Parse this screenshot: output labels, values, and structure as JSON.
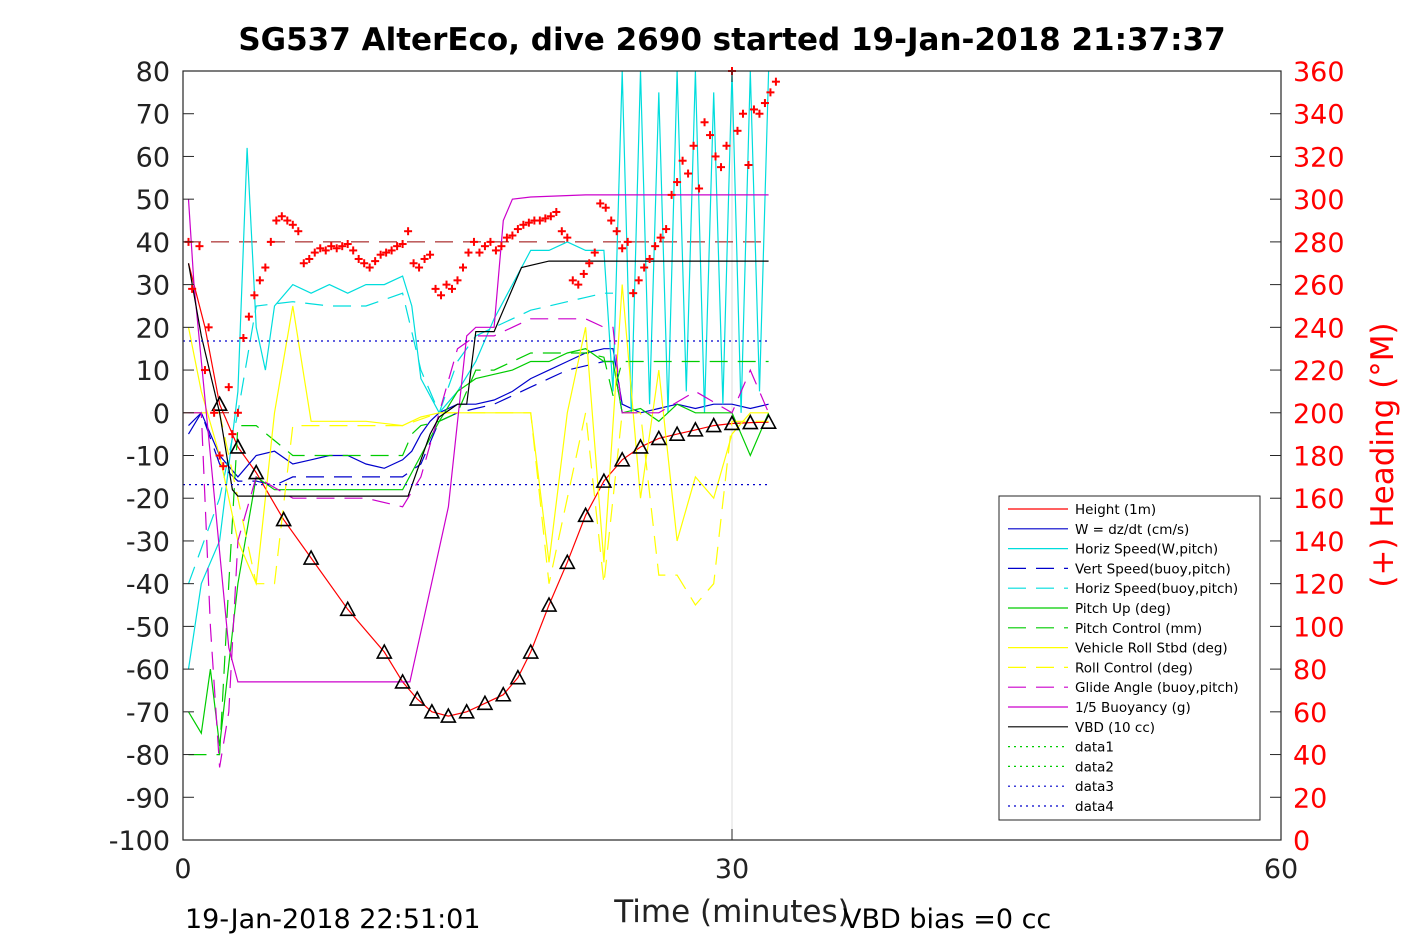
{
  "chart_data": {
    "type": "line",
    "title": "SG537 AlterEco, dive 2690 started 19-Jan-2018 21:37:37",
    "xlabel": "Time (minutes)",
    "ylabel_right": "(+) Heading (°M)",
    "xlim": [
      0,
      60
    ],
    "ylim_left": [
      -100,
      80
    ],
    "ylim_right": [
      0,
      360
    ],
    "x_ticks": [
      "0",
      "30",
      "60"
    ],
    "y_ticks_left": [
      "80",
      "70",
      "60",
      "50",
      "40",
      "30",
      "20",
      "10",
      "0",
      "-10",
      "-20",
      "-30",
      "-40",
      "-50",
      "-60",
      "-70",
      "-80",
      "-90",
      "-100"
    ],
    "y_ticks_right": [
      "360",
      "340",
      "320",
      "300",
      "280",
      "260",
      "240",
      "220",
      "200",
      "180",
      "160",
      "140",
      "120",
      "100",
      "80",
      "60",
      "40",
      "20",
      "0"
    ],
    "grid": "x-only",
    "legend_position": "bottom-right",
    "footer_left": "19-Jan-2018 22:51:01",
    "footer_right": "VBD bias =0 cc",
    "series": [
      {
        "name": "Height (1m)",
        "color": "#ff0000",
        "style": "solid",
        "x": [
          0.3,
          1.2,
          2.0,
          3.0,
          4.0,
          5.5,
          7.0,
          9.0,
          11.0,
          12.0,
          12.8,
          13.6,
          14.5,
          15.5,
          16.5,
          17.5,
          18.3,
          19.0,
          20.0,
          21.0,
          22.0,
          23.0,
          24.0,
          25.0,
          26.0,
          27.0,
          28.0,
          29.0,
          30.0,
          31.0,
          32.0
        ],
        "y": [
          35,
          20,
          2,
          -8,
          -14,
          -25,
          -34,
          -46,
          -56,
          -63,
          -67,
          -70,
          -71,
          -70,
          -68,
          -66,
          -62,
          -56,
          -45,
          -35,
          -24,
          -16,
          -11,
          -8,
          -6,
          -5,
          -4,
          -3,
          -2.5,
          -2.3,
          -2.2
        ]
      },
      {
        "name": "W = dz/dt (cm/s)",
        "color": "#0000cc",
        "style": "solid",
        "x": [
          0.3,
          1.0,
          2.0,
          3.0,
          4.0,
          5.0,
          6.0,
          7.0,
          8.0,
          9.0,
          10.0,
          11.0,
          12.0,
          12.5,
          13.0,
          13.5,
          14.0,
          15.0,
          16.0,
          17.0,
          18.0,
          19.0,
          20.0,
          21.0,
          22.0,
          23.0,
          23.5,
          24.0,
          25.0,
          26.0,
          27.0,
          28.0,
          29.0,
          30.0,
          31.0,
          32.0
        ],
        "y": [
          -5,
          0,
          -10,
          -15,
          -10,
          -9,
          -12,
          -11,
          -10,
          -10,
          -12,
          -13,
          -11,
          -9,
          -5,
          -2,
          0,
          2,
          2,
          3,
          5,
          8,
          10,
          12,
          14,
          15,
          15,
          2,
          0,
          1,
          2,
          1,
          2,
          2,
          1,
          2
        ]
      },
      {
        "name": "Horiz Speed(W,pitch)",
        "color": "#00dddd",
        "style": "solid",
        "x": [
          0.3,
          1.0,
          2.0,
          3.0,
          3.5,
          4.0,
          4.5,
          5.0,
          6.0,
          7.0,
          8.0,
          9.0,
          10.0,
          11.0,
          12.0,
          12.5,
          13.0,
          14.0,
          15.0,
          16.0,
          17.0,
          18.0,
          19.0,
          20.0,
          21.0,
          22.0,
          23.0,
          23.5,
          24.0,
          24.5,
          25.0,
          25.5,
          26.0,
          26.5,
          27.0,
          27.5,
          28.0,
          28.5,
          29.0,
          29.5,
          30.0,
          30.5,
          31.0,
          31.5,
          32.0
        ],
        "y": [
          -60,
          -40,
          -30,
          5,
          62,
          20,
          10,
          25,
          30,
          28,
          30,
          28,
          30,
          30,
          32,
          25,
          8,
          0,
          5,
          12,
          22,
          30,
          38,
          38,
          40,
          38,
          38,
          5,
          80,
          0,
          80,
          2,
          75,
          0,
          80,
          5,
          80,
          0,
          75,
          2,
          80,
          0,
          80,
          5,
          80
        ]
      },
      {
        "name": "Vert Speed(buoy,pitch)",
        "color": "#0000cc",
        "style": "dashed",
        "x": [
          0.3,
          1.0,
          2.0,
          3.0,
          4.0,
          5.0,
          6.0,
          8.0,
          10.0,
          12.0,
          13.0,
          14.0,
          15.0,
          16.0,
          17.0,
          18.0,
          19.0,
          20.0,
          21.0,
          22.0,
          23.0,
          23.5,
          24.0
        ],
        "y": [
          -3,
          0,
          -12,
          -16,
          -16,
          -17,
          -15,
          -15,
          -15,
          -15,
          -12,
          -2,
          0,
          1,
          2,
          4,
          6,
          8,
          10,
          11,
          12,
          12,
          0
        ]
      },
      {
        "name": "Horiz Speed(buoy,pitch)",
        "color": "#00dddd",
        "style": "dashed",
        "x": [
          0.3,
          2.0,
          3.0,
          4.0,
          6.0,
          8.0,
          10.0,
          12.0,
          13.0,
          14.0,
          15.0,
          16.0,
          17.0,
          18.0,
          19.0,
          20.0,
          21.0,
          22.0,
          23.0,
          23.5
        ],
        "y": [
          -40,
          -20,
          0,
          25,
          26,
          25,
          25,
          28,
          10,
          0,
          12,
          18,
          20,
          22,
          24,
          25,
          26,
          27,
          28,
          28
        ]
      },
      {
        "name": "Pitch Up (deg)",
        "color": "#00cc00",
        "style": "solid",
        "x": [
          0.3,
          1.0,
          1.5,
          2.0,
          3.0,
          4.0,
          5.0,
          6.0,
          8.0,
          10.0,
          12.0,
          13.0,
          14.0,
          15.0,
          16.0,
          17.0,
          18.0,
          19.0,
          20.0,
          21.0,
          22.0,
          23.0,
          23.5,
          24.0,
          25.0,
          26.0,
          27.0,
          28.0,
          29.0,
          30.0,
          31.0,
          32.0
        ],
        "y": [
          -70,
          -75,
          -60,
          -78,
          -40,
          -15,
          -18,
          -18,
          -18,
          -18,
          -18,
          -10,
          -2,
          5,
          8,
          9,
          10,
          12,
          12,
          14,
          15,
          12,
          12,
          0,
          1,
          -2,
          2,
          0,
          0,
          0,
          -10,
          0
        ]
      },
      {
        "name": "Pitch Control (mm)",
        "color": "#00cc00",
        "style": "dashed",
        "x": [
          0.3,
          2.0,
          2.5,
          3.0,
          4.0,
          6.0,
          8.0,
          10.0,
          12.0,
          12.5,
          13.0,
          14.0,
          15.0,
          16.0,
          17.0,
          18.0,
          19.0,
          20.0,
          21.0,
          22.0,
          23.0,
          23.5,
          24.0,
          26.0,
          28.0,
          30.0,
          32.0
        ],
        "y": [
          -80,
          -80,
          -40,
          -3,
          -3,
          -10,
          -10,
          -10,
          -10,
          -5,
          -3,
          -2,
          0,
          10,
          10,
          12,
          14,
          14,
          14,
          14,
          13,
          4,
          12,
          12,
          12,
          12,
          12
        ]
      },
      {
        "name": "Vehicle Roll Stbd (deg)",
        "color": "#ffff00",
        "style": "solid",
        "x": [
          0.3,
          1.0,
          2.0,
          3.0,
          4.0,
          5.0,
          6.0,
          7.0,
          8.0,
          10.0,
          12.0,
          13.0,
          14.0,
          15.0,
          16.0,
          17.0,
          18.0,
          19.0,
          20.0,
          21.0,
          22.0,
          23.0,
          24.0,
          25.0,
          26.0,
          27.0,
          28.0,
          29.0,
          30.0,
          31.0,
          32.0
        ],
        "y": [
          20,
          5,
          -10,
          -30,
          -40,
          0,
          25,
          -2,
          -2,
          -2,
          -3,
          -1,
          0,
          0,
          0,
          0,
          0,
          0,
          -35,
          0,
          20,
          -35,
          30,
          -20,
          10,
          -30,
          -15,
          -20,
          -5,
          0,
          0
        ]
      },
      {
        "name": "Roll Control (deg)",
        "color": "#ffff00",
        "style": "dashed",
        "x": [
          0.3,
          2.0,
          3.0,
          4.0,
          5.0,
          6.0,
          8.0,
          10.0,
          12.0,
          14.0,
          16.0,
          18.0,
          19.0,
          20.0,
          21.0,
          22.0,
          23.0,
          24.0,
          25.0,
          26.0,
          27.0,
          28.0,
          29.0,
          30.0,
          31.0,
          32.0
        ],
        "y": [
          0,
          0,
          -20,
          -40,
          -40,
          -3,
          -3,
          -3,
          -3,
          0,
          0,
          0,
          0,
          -40,
          -20,
          0,
          -40,
          0,
          0,
          -38,
          -38,
          -45,
          -40,
          -2,
          -2,
          -2
        ]
      },
      {
        "name": "Glide Angle (buoy,pitch)",
        "color": "#cc00cc",
        "style": "dashed",
        "x": [
          0.3,
          1.0,
          1.5,
          2.0,
          2.5,
          3.0,
          4.0,
          6.0,
          8.0,
          10.0,
          12.0,
          13.0,
          14.0,
          15.0,
          16.0,
          17.0,
          18.0,
          19.0,
          20.0,
          21.0,
          22.0,
          23.0,
          23.5,
          24.0,
          26.0,
          28.0,
          30.0,
          31.0,
          32.0
        ],
        "y": [
          0,
          0,
          -50,
          -83,
          -70,
          -30,
          -15,
          -20,
          -20,
          -20,
          -22,
          -15,
          0,
          15,
          18,
          18,
          20,
          22,
          22,
          22,
          22,
          20,
          20,
          0,
          0,
          5,
          0,
          10,
          0
        ]
      },
      {
        "name": "1/5 Buoyancy (g)",
        "color": "#cc00cc",
        "style": "solid",
        "x": [
          0.3,
          0.6,
          1.5,
          2.5,
          3.0,
          4.0,
          8.0,
          12.0,
          12.4,
          14.5,
          15.5,
          16.0,
          17.0,
          17.5,
          18.0,
          19.0,
          22.0,
          25.0,
          28.0,
          30.0,
          32.0
        ],
        "y": [
          50,
          30,
          -10,
          -55,
          -63,
          -63,
          -63,
          -63,
          -63,
          -22,
          18,
          20,
          20,
          45,
          50,
          50.5,
          51,
          51,
          51,
          51,
          51
        ]
      },
      {
        "name": "VBD (10 cc)",
        "color": "#000000",
        "style": "solid",
        "x": [
          0.3,
          1.0,
          2.0,
          2.7,
          3.0,
          3.5,
          8.0,
          12.0,
          12.3,
          13.5,
          14.0,
          15.0,
          15.5,
          16.0,
          17.0,
          18.5,
          20.0,
          22.0,
          25.0,
          28.0,
          30.0,
          32.0
        ],
        "y": [
          35,
          18,
          0,
          -18,
          -19.5,
          -19.5,
          -19.5,
          -19.5,
          -19.5,
          -5,
          -1,
          2,
          2,
          19,
          19,
          34,
          35.5,
          35.5,
          35.5,
          35.5,
          35.5,
          35.5
        ]
      },
      {
        "name": "data1",
        "color": "#00cc00",
        "style": "dotted",
        "x": [],
        "y": []
      },
      {
        "name": "data2",
        "color": "#00cc00",
        "style": "dotted",
        "x": [],
        "y": []
      },
      {
        "name": "data3",
        "color": "#0000cc",
        "style": "dotted",
        "x": [
          0,
          32
        ],
        "y": [
          16.8,
          16.8
        ]
      },
      {
        "name": "data4",
        "color": "#0000cc",
        "style": "dotted",
        "x": [
          0,
          32
        ],
        "y": [
          -16.8,
          -16.8
        ]
      }
    ],
    "reference_lines": [
      {
        "axis": "left",
        "y": 40,
        "color": "#990000",
        "style": "dashed",
        "x": [
          0,
          32
        ]
      },
      {
        "axis": "left",
        "y": 0,
        "color": "#990000",
        "style": "dashed",
        "x": [
          0,
          3
        ]
      }
    ],
    "heading_points": {
      "axis": "right",
      "color": "#ff0000",
      "marker": "+",
      "x": [
        0.3,
        0.5,
        0.9,
        1.2,
        1.4,
        1.7,
        2.0,
        2.2,
        2.5,
        2.7,
        3.0,
        3.3,
        3.6,
        3.9,
        4.2,
        4.5,
        4.8,
        5.1,
        5.4,
        5.7,
        6.0,
        6.3,
        6.6,
        6.9,
        7.2,
        7.5,
        7.8,
        8.1,
        8.4,
        8.7,
        9.0,
        9.3,
        9.6,
        9.9,
        10.2,
        10.5,
        10.8,
        11.1,
        11.4,
        11.7,
        12.0,
        12.3,
        12.6,
        12.9,
        13.2,
        13.5,
        13.8,
        14.1,
        14.4,
        14.7,
        15.0,
        15.3,
        15.6,
        15.9,
        16.2,
        16.5,
        16.8,
        17.1,
        17.4,
        17.7,
        18.0,
        18.3,
        18.6,
        18.9,
        19.2,
        19.5,
        19.8,
        20.1,
        20.4,
        20.7,
        21.0,
        21.3,
        21.6,
        21.9,
        22.2,
        22.5,
        22.8,
        23.1,
        23.4,
        23.7,
        24.0,
        24.3,
        24.6,
        24.9,
        25.2,
        25.5,
        25.8,
        26.1,
        26.4,
        26.7,
        27.0,
        27.3,
        27.6,
        27.9,
        28.2,
        28.5,
        28.8,
        29.1,
        29.4,
        29.7,
        30.0,
        30.3,
        30.6,
        30.9,
        31.2,
        31.5,
        31.8,
        32.1,
        32.4
      ],
      "y": [
        280,
        258,
        278,
        220,
        240,
        200,
        180,
        175,
        212,
        190,
        200,
        235,
        245,
        255,
        262,
        268,
        280,
        290,
        292,
        290,
        288,
        285,
        270,
        272,
        275,
        277,
        276,
        278,
        277,
        278,
        279,
        276,
        272,
        270,
        268,
        271,
        274,
        275,
        276,
        278,
        279,
        285,
        270,
        268,
        272,
        274,
        258,
        255,
        260,
        258,
        262,
        268,
        275,
        280,
        275,
        278,
        280,
        276,
        278,
        282,
        283,
        286,
        288,
        289,
        290,
        290,
        291,
        292,
        294,
        285,
        282,
        262,
        260,
        265,
        270,
        275,
        298,
        296,
        290,
        285,
        277,
        280,
        256,
        262,
        268,
        272,
        278,
        282,
        286,
        302,
        308,
        318,
        312,
        325,
        305,
        336,
        330,
        320,
        315,
        325,
        360,
        332,
        340,
        316,
        342,
        340,
        345,
        350,
        355
      ],
      "range_hint": "right-axis heading values in degrees magnetic"
    }
  }
}
